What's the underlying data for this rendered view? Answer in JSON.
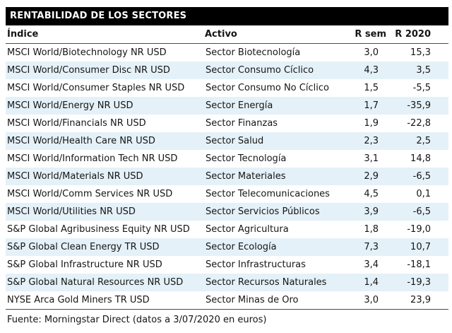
{
  "title": "RENTABILIDAD DE LOS SECTORES",
  "columns": [
    "Índice",
    "Activo",
    "R sem",
    "R 2020"
  ],
  "rows": [
    {
      "indice": "MSCI World/Biotechnology NR USD",
      "activo": "Sector Biotecnología",
      "r_sem": "3,0",
      "r_2020": "15,3"
    },
    {
      "indice": "MSCI World/Consumer Disc NR USD",
      "activo": "Sector Consumo Cíclico",
      "r_sem": "4,3",
      "r_2020": "3,5"
    },
    {
      "indice": "MSCI World/Consumer Staples NR USD",
      "activo": "Sector Consumo No Cíclico",
      "r_sem": "1,5",
      "r_2020": "-5,5"
    },
    {
      "indice": "MSCI World/Energy NR USD",
      "activo": "Sector Energía",
      "r_sem": "1,7",
      "r_2020": "-35,9"
    },
    {
      "indice": "MSCI World/Financials NR USD",
      "activo": "Sector Finanzas",
      "r_sem": "1,9",
      "r_2020": "-22,8"
    },
    {
      "indice": "MSCI World/Health Care NR USD",
      "activo": "Sector Salud",
      "r_sem": "2,3",
      "r_2020": "2,5"
    },
    {
      "indice": "MSCI World/Information Tech NR USD",
      "activo": "Sector Tecnología",
      "r_sem": "3,1",
      "r_2020": "14,8"
    },
    {
      "indice": "MSCI World/Materials NR USD",
      "activo": "Sector Materiales",
      "r_sem": "2,9",
      "r_2020": "-6,5"
    },
    {
      "indice": "MSCI World/Comm Services NR USD",
      "activo": "Sector Telecomunicaciones",
      "r_sem": "4,5",
      "r_2020": "0,1"
    },
    {
      "indice": "MSCI World/Utilities NR USD",
      "activo": "Sector Servicios Públicos",
      "r_sem": "3,9",
      "r_2020": "-6,5"
    },
    {
      "indice": "S&P Global Agribusiness Equity NR USD",
      "activo": "Sector Agricultura",
      "r_sem": "1,8",
      "r_2020": "-19,0"
    },
    {
      "indice": "S&P Global Clean Energy TR USD",
      "activo": "Sector Ecología",
      "r_sem": "7,3",
      "r_2020": "10,7"
    },
    {
      "indice": "S&P Global Infrastructure NR USD",
      "activo": "Sector Infrastructuras",
      "r_sem": "3,4",
      "r_2020": "-18,1"
    },
    {
      "indice": "S&P Global Natural Resources NR USD",
      "activo": "Sector Recursos Naturales",
      "r_sem": "1,4",
      "r_2020": "-19,3"
    },
    {
      "indice": "NYSE Arca Gold Miners TR USD",
      "activo": "Sector Minas de Oro",
      "r_sem": "3,0",
      "r_2020": "23,9"
    }
  ],
  "footer": "Fuente: Morningstar Direct (datos a 3/07/2020 en euros)",
  "colors": {
    "title_bg": "#000000",
    "title_text": "#ffffff",
    "row_stripe": "#e4f1f8",
    "rule_line": "#4a4a4a",
    "body_text": "#151515"
  }
}
